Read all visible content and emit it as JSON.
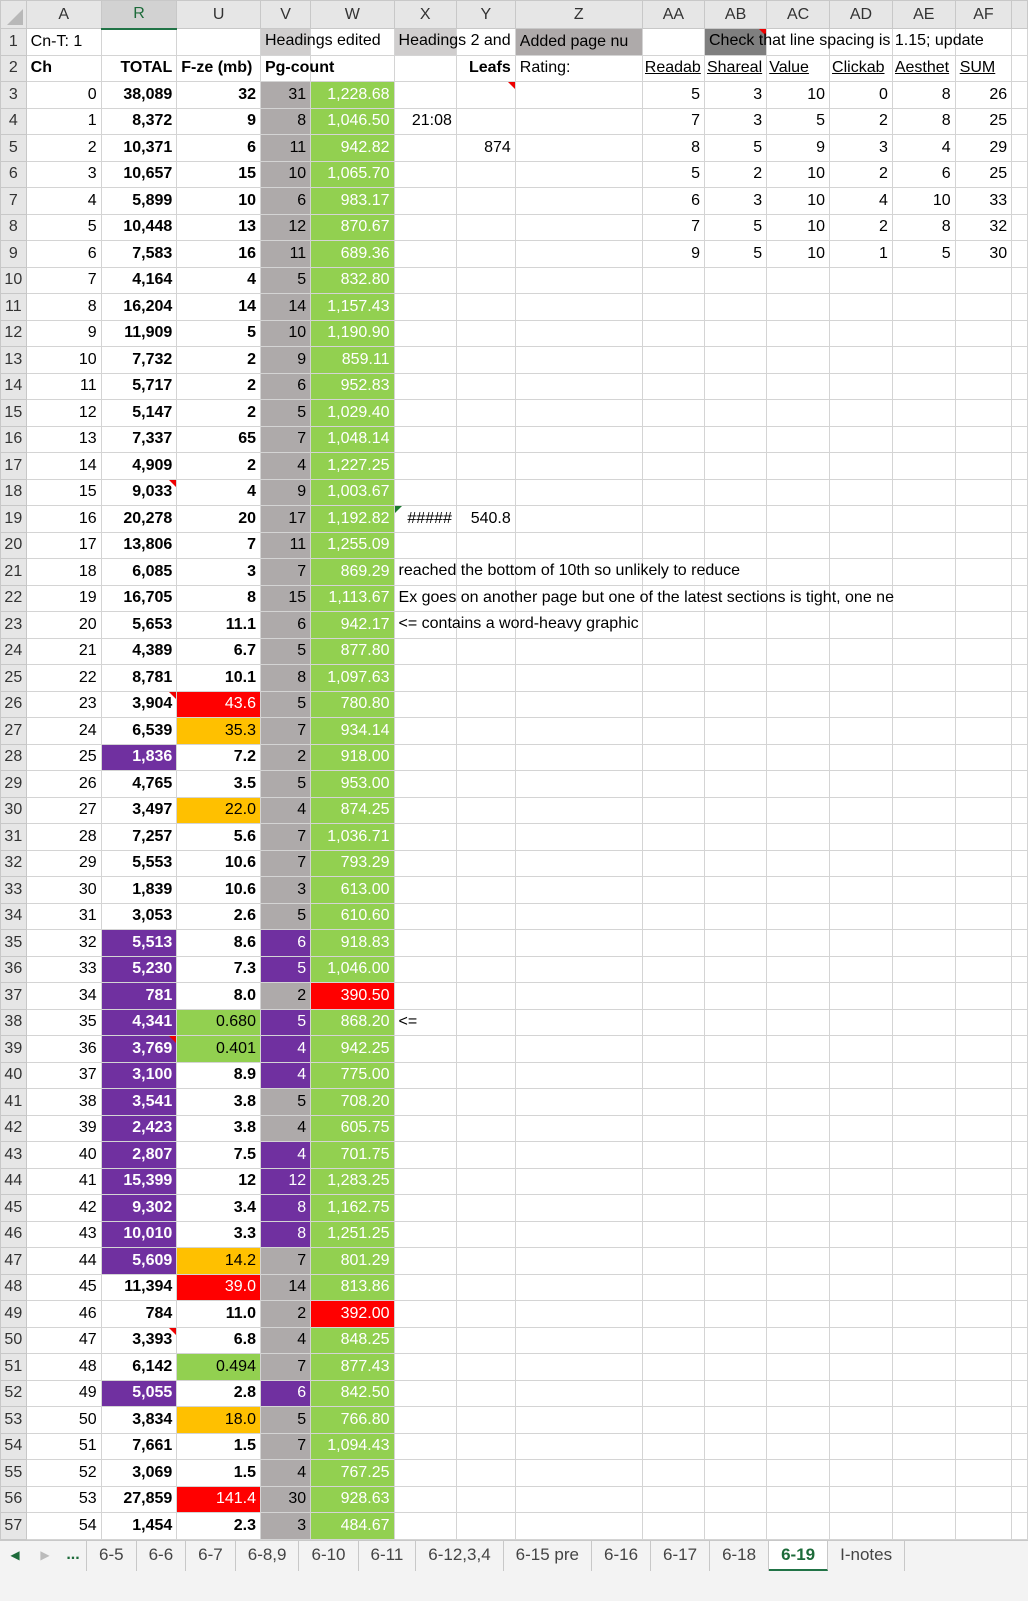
{
  "colors": {
    "purple": "#7030a0",
    "red": "#ff0000",
    "orange": "#ffc000",
    "green": "#92d050",
    "gray": "#aeaaaa",
    "dark_gray": "#7f7f7f",
    "tab_active": "#217346"
  },
  "columns": [
    "A",
    "R",
    "U",
    "V",
    "W",
    "X",
    "Y",
    "Z",
    "AA",
    "AB",
    "AC",
    "AD",
    "AE",
    "AF",
    ""
  ],
  "selected_column": "R",
  "row1": {
    "A": "Cn-T: 1",
    "V": "Headings edited",
    "X": "Headings 2 and",
    "Z": "Added page nu",
    "AB": "Check that line spacing is 1.15; update"
  },
  "row2": {
    "A": "Ch",
    "R": "TOTAL",
    "U": "F-ze (mb)",
    "V": "Pg-count",
    "Y": "Leafs",
    "Z": "Rating:",
    "AA": "Readab",
    "AB": "Shareal",
    "AC": "Value",
    "AD": "Clickab",
    "AE": "Aesthet",
    "AF": "SUM"
  },
  "rows": [
    [
      "0",
      "38,089",
      "32",
      "31",
      "1,228.68"
    ],
    [
      "1",
      "8,372",
      "9",
      "8",
      "1,046.50"
    ],
    [
      "2",
      "10,371",
      "6",
      "11",
      "942.82"
    ],
    [
      "3",
      "10,657",
      "15",
      "10",
      "1,065.70"
    ],
    [
      "4",
      "5,899",
      "10",
      "6",
      "983.17"
    ],
    [
      "5",
      "10,448",
      "13",
      "12",
      "870.67"
    ],
    [
      "6",
      "7,583",
      "16",
      "11",
      "689.36"
    ],
    [
      "7",
      "4,164",
      "4",
      "5",
      "832.80"
    ],
    [
      "8",
      "16,204",
      "14",
      "14",
      "1,157.43"
    ],
    [
      "9",
      "11,909",
      "5",
      "10",
      "1,190.90"
    ],
    [
      "10",
      "7,732",
      "2",
      "9",
      "859.11"
    ],
    [
      "11",
      "5,717",
      "2",
      "6",
      "952.83"
    ],
    [
      "12",
      "5,147",
      "2",
      "5",
      "1,029.40"
    ],
    [
      "13",
      "7,337",
      "65",
      "7",
      "1,048.14"
    ],
    [
      "14",
      "4,909",
      "2",
      "4",
      "1,227.25"
    ],
    [
      "15",
      "9,033",
      "4",
      "9",
      "1,003.67"
    ],
    [
      "16",
      "20,278",
      "20",
      "17",
      "1,192.82"
    ],
    [
      "17",
      "13,806",
      "7",
      "11",
      "1,255.09"
    ],
    [
      "18",
      "6,085",
      "3",
      "7",
      "869.29"
    ],
    [
      "19",
      "16,705",
      "8",
      "15",
      "1,113.67"
    ],
    [
      "20",
      "5,653",
      "11.1",
      "6",
      "942.17"
    ],
    [
      "21",
      "4,389",
      "6.7",
      "5",
      "877.80"
    ],
    [
      "22",
      "8,781",
      "10.1",
      "8",
      "1,097.63"
    ],
    [
      "23",
      "3,904",
      "43.6",
      "5",
      "780.80"
    ],
    [
      "24",
      "6,539",
      "35.3",
      "7",
      "934.14"
    ],
    [
      "25",
      "1,836",
      "7.2",
      "2",
      "918.00"
    ],
    [
      "26",
      "4,765",
      "3.5",
      "5",
      "953.00"
    ],
    [
      "27",
      "3,497",
      "22.0",
      "4",
      "874.25"
    ],
    [
      "28",
      "7,257",
      "5.6",
      "7",
      "1,036.71"
    ],
    [
      "29",
      "5,553",
      "10.6",
      "7",
      "793.29"
    ],
    [
      "30",
      "1,839",
      "10.6",
      "3",
      "613.00"
    ],
    [
      "31",
      "3,053",
      "2.6",
      "5",
      "610.60"
    ],
    [
      "32",
      "5,513",
      "8.6",
      "6",
      "918.83"
    ],
    [
      "33",
      "5,230",
      "7.3",
      "5",
      "1,046.00"
    ],
    [
      "34",
      "781",
      "8.0",
      "2",
      "390.50"
    ],
    [
      "35",
      "4,341",
      "0.680",
      "5",
      "868.20"
    ],
    [
      "36",
      "3,769",
      "0.401",
      "4",
      "942.25"
    ],
    [
      "37",
      "3,100",
      "8.9",
      "4",
      "775.00"
    ],
    [
      "38",
      "3,541",
      "3.8",
      "5",
      "708.20"
    ],
    [
      "39",
      "2,423",
      "3.8",
      "4",
      "605.75"
    ],
    [
      "40",
      "2,807",
      "7.5",
      "4",
      "701.75"
    ],
    [
      "41",
      "15,399",
      "12",
      "12",
      "1,283.25"
    ],
    [
      "42",
      "9,302",
      "3.4",
      "8",
      "1,162.75"
    ],
    [
      "43",
      "10,010",
      "3.3",
      "8",
      "1,251.25"
    ],
    [
      "44",
      "5,609",
      "14.2",
      "7",
      "801.29"
    ],
    [
      "45",
      "11,394",
      "39.0",
      "14",
      "813.86"
    ],
    [
      "46",
      "784",
      "11.0",
      "2",
      "392.00"
    ],
    [
      "47",
      "3,393",
      "6.8",
      "4",
      "848.25"
    ],
    [
      "48",
      "6,142",
      "0.494",
      "7",
      "877.43"
    ],
    [
      "49",
      "5,055",
      "2.8",
      "6",
      "842.50"
    ],
    [
      "50",
      "3,834",
      "18.0",
      "5",
      "766.80"
    ],
    [
      "51",
      "7,661",
      "1.5",
      "7",
      "1,094.43"
    ],
    [
      "52",
      "3,069",
      "1.5",
      "4",
      "767.25"
    ],
    [
      "53",
      "27,859",
      "141.4",
      "30",
      "928.63"
    ],
    [
      "54",
      "1,454",
      "2.3",
      "3",
      "484.67"
    ]
  ],
  "fills": {
    "R_purple_rows": [
      28,
      35,
      36,
      37,
      38,
      39,
      40,
      41,
      42,
      43,
      44,
      45,
      46,
      47,
      52
    ],
    "V_purple_rows": [
      35,
      36,
      38,
      39,
      40,
      43,
      44,
      45,
      46,
      52
    ],
    "W_red_rows": [
      37,
      49
    ],
    "U": {
      "26": "red",
      "27": "orange",
      "30": "orange",
      "38": "green",
      "39": "green",
      "47": "orange",
      "48": "red",
      "51": "green",
      "53": "orange",
      "56": "red"
    }
  },
  "ratings": [
    [
      "5",
      "3",
      "10",
      "0",
      "8",
      "26"
    ],
    [
      "7",
      "3",
      "5",
      "2",
      "8",
      "25"
    ],
    [
      "8",
      "5",
      "9",
      "3",
      "4",
      "29"
    ],
    [
      "6",
      "3",
      "10",
      "4",
      "10",
      "33"
    ],
    [
      "7",
      "5",
      "10",
      "2",
      "8",
      "32"
    ],
    [
      "9",
      "5",
      "10",
      "1",
      "5",
      "30"
    ]
  ],
  "ratings_row6": [
    "5",
    "2",
    "10",
    "2",
    "6",
    "25"
  ],
  "extras": {
    "X4": "21:08",
    "Y5": "874",
    "X19": "#####",
    "Y19": "540.8",
    "X21": "reached the bottom of 10th so unlikely to reduce",
    "X22": "Ex goes on another page but one of the latest sections is tight, one ne",
    "X23": "<= contains a word-heavy graphic",
    "X38": "<="
  },
  "comment_cells": [
    "AB1",
    "Y3",
    "R18",
    "R26",
    "R39",
    "R50"
  ],
  "error_cells": [
    "X19"
  ],
  "tabs": {
    "more": "...",
    "items": [
      "6-5",
      "6-6",
      "6-7",
      "6-8,9",
      "6-10",
      "6-11",
      "6-12,3,4",
      "6-15 pre",
      "6-16",
      "6-17",
      "6-18",
      "6-19",
      "I-notes"
    ],
    "active": "6-19"
  }
}
